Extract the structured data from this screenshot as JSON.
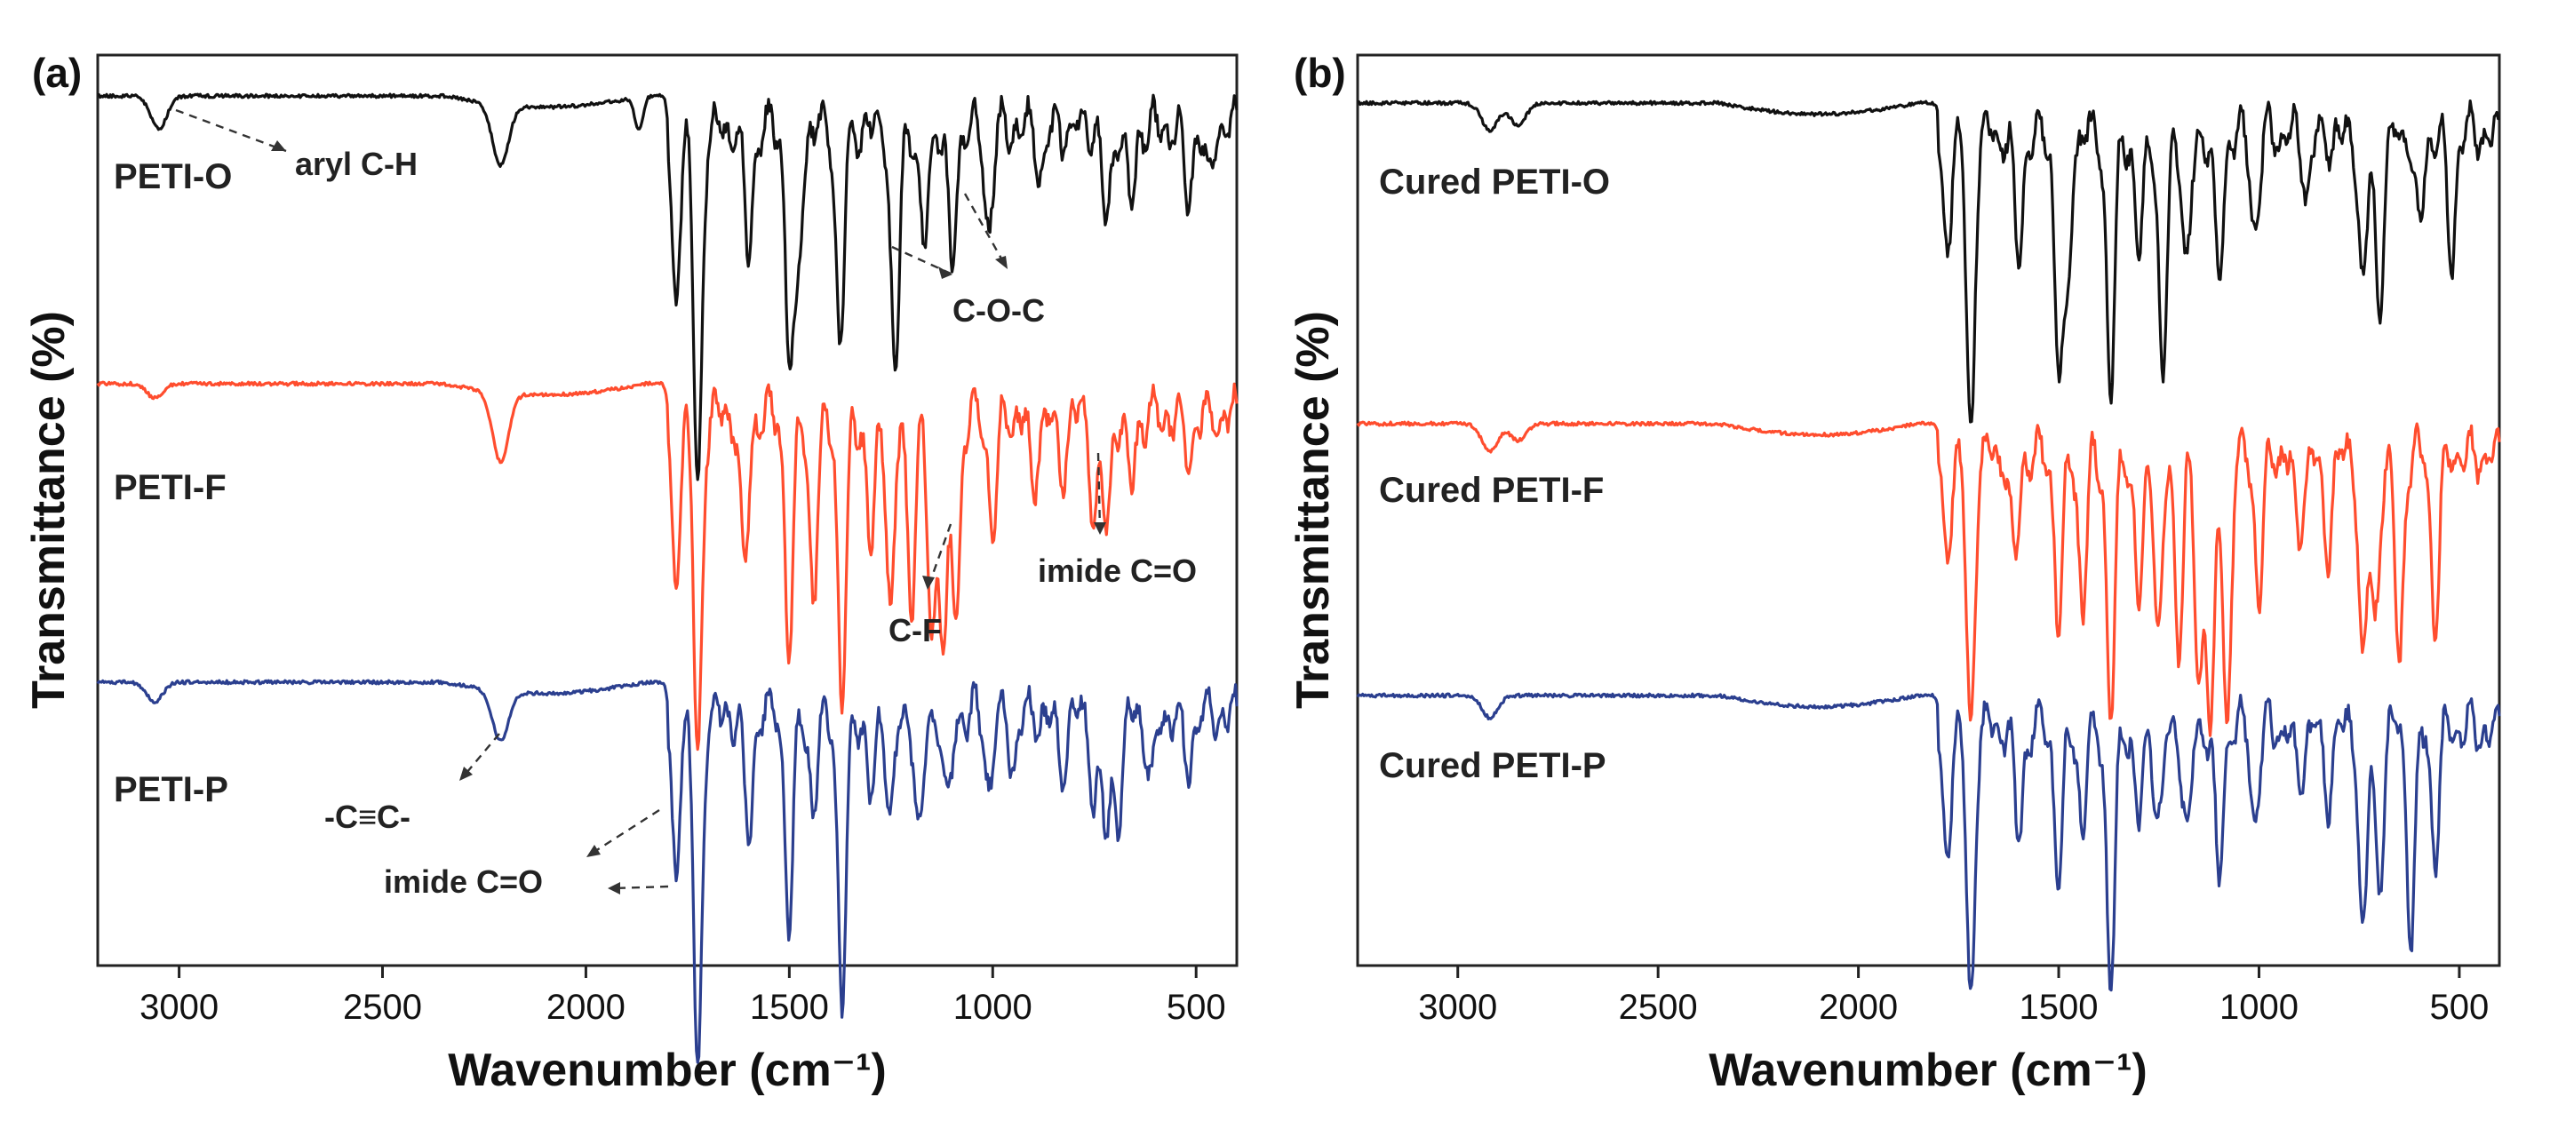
{
  "colors": {
    "black": "#111111",
    "red": "#ff4d2e",
    "blue": "#2b3f8f"
  },
  "chart_data": [
    {
      "panel": "(a)",
      "type": "line",
      "xlabel": "Wavenumber (cm⁻¹)",
      "ylabel": "Transmittance (%)",
      "xlim": [
        3200,
        400
      ],
      "xticks": [
        "3000",
        "2500",
        "2000",
        "1500",
        "1000",
        "500"
      ],
      "grid": false,
      "series": [
        {
          "name": "PETI-O",
          "color": "#111111",
          "peaks": [
            [
              3050,
              0.12
            ],
            [
              2210,
              0.22
            ],
            [
              1870,
              0.12
            ],
            [
              1780,
              0.6
            ],
            [
              1725,
              1.3
            ],
            [
              1600,
              0.45
            ],
            [
              1500,
              0.75
            ],
            [
              1480,
              0.55
            ],
            [
              1375,
              0.78
            ],
            [
              1240,
              0.9
            ],
            [
              1170,
              0.45
            ],
            [
              1100,
              0.5
            ],
            [
              1010,
              0.35
            ],
            [
              880,
              0.15
            ],
            [
              720,
              0.35
            ],
            [
              660,
              0.28
            ],
            [
              520,
              0.25
            ],
            [
              470,
              0.2
            ]
          ]
        },
        {
          "name": "PETI-F",
          "color": "#ff4d2e",
          "peaks": [
            [
              3060,
              0.05
            ],
            [
              2210,
              0.25
            ],
            [
              1780,
              0.6
            ],
            [
              1725,
              1.25
            ],
            [
              1610,
              0.55
            ],
            [
              1500,
              0.85
            ],
            [
              1440,
              0.65
            ],
            [
              1370,
              1.05
            ],
            [
              1300,
              0.5
            ],
            [
              1250,
              0.7
            ],
            [
              1200,
              0.65
            ],
            [
              1150,
              0.8
            ],
            [
              1120,
              0.85
            ],
            [
              1090,
              0.7
            ],
            [
              1000,
              0.4
            ],
            [
              900,
              0.25
            ],
            [
              830,
              0.2
            ],
            [
              750,
              0.35
            ],
            [
              720,
              0.4
            ],
            [
              660,
              0.25
            ],
            [
              520,
              0.15
            ]
          ]
        },
        {
          "name": "PETI-P",
          "color": "#2b3f8f",
          "peaks": [
            [
              3060,
              0.07
            ],
            [
              2210,
              0.18
            ],
            [
              1780,
              0.55
            ],
            [
              1725,
              1.3
            ],
            [
              1600,
              0.45
            ],
            [
              1500,
              0.75
            ],
            [
              1440,
              0.35
            ],
            [
              1370,
              1.05
            ],
            [
              1300,
              0.3
            ],
            [
              1250,
              0.35
            ],
            [
              1180,
              0.45
            ],
            [
              1110,
              0.35
            ],
            [
              1010,
              0.25
            ],
            [
              950,
              0.18
            ],
            [
              830,
              0.2
            ],
            [
              750,
              0.3
            ],
            [
              720,
              0.45
            ],
            [
              690,
              0.35
            ],
            [
              610,
              0.25
            ],
            [
              520,
              0.2
            ]
          ]
        }
      ],
      "annotations": [
        "aryl C-H",
        "C-O-C",
        "C-F",
        "imide C=O",
        "-C≡C-",
        "imide C=O"
      ]
    },
    {
      "panel": "(b)",
      "type": "line",
      "xlabel": "Wavenumber (cm⁻¹)",
      "ylabel": "Transmittance (%)",
      "xlim": [
        3250,
        400
      ],
      "xticks": [
        "3000",
        "2500",
        "2000",
        "1500",
        "1000",
        "500"
      ],
      "grid": false,
      "series": [
        {
          "name": "Cured PETI-O",
          "color": "#111111",
          "peaks": [
            [
              2920,
              0.1
            ],
            [
              2850,
              0.08
            ],
            [
              1780,
              0.4
            ],
            [
              1720,
              1.1
            ],
            [
              1600,
              0.45
            ],
            [
              1500,
              0.75
            ],
            [
              1480,
              0.6
            ],
            [
              1370,
              0.95
            ],
            [
              1300,
              0.45
            ],
            [
              1240,
              0.9
            ],
            [
              1180,
              0.5
            ],
            [
              1100,
              0.55
            ],
            [
              1010,
              0.35
            ],
            [
              880,
              0.2
            ],
            [
              740,
              0.55
            ],
            [
              700,
              0.6
            ],
            [
              600,
              0.35
            ],
            [
              520,
              0.45
            ]
          ]
        },
        {
          "name": "Cured PETI-F",
          "color": "#ff4d2e",
          "peaks": [
            [
              2920,
              0.1
            ],
            [
              2850,
              0.06
            ],
            [
              1780,
              0.35
            ],
            [
              1720,
              1.0
            ],
            [
              1610,
              0.4
            ],
            [
              1500,
              0.6
            ],
            [
              1440,
              0.55
            ],
            [
              1370,
              0.95
            ],
            [
              1300,
              0.55
            ],
            [
              1250,
              0.65
            ],
            [
              1200,
              0.65
            ],
            [
              1150,
              0.85
            ],
            [
              1120,
              1.0
            ],
            [
              1080,
              0.95
            ],
            [
              1000,
              0.5
            ],
            [
              900,
              0.3
            ],
            [
              830,
              0.35
            ],
            [
              740,
              0.75
            ],
            [
              710,
              0.6
            ],
            [
              650,
              0.75
            ],
            [
              560,
              0.6
            ]
          ]
        },
        {
          "name": "Cured PETI-P",
          "color": "#2b3f8f",
          "peaks": [
            [
              2920,
              0.08
            ],
            [
              1780,
              0.45
            ],
            [
              1720,
              1.0
            ],
            [
              1600,
              0.4
            ],
            [
              1500,
              0.55
            ],
            [
              1440,
              0.35
            ],
            [
              1370,
              0.95
            ],
            [
              1300,
              0.35
            ],
            [
              1250,
              0.35
            ],
            [
              1180,
              0.4
            ],
            [
              1100,
              0.55
            ],
            [
              1010,
              0.3
            ],
            [
              900,
              0.2
            ],
            [
              830,
              0.25
            ],
            [
              740,
              0.75
            ],
            [
              700,
              0.55
            ],
            [
              620,
              0.75
            ],
            [
              560,
              0.45
            ]
          ]
        }
      ]
    }
  ]
}
